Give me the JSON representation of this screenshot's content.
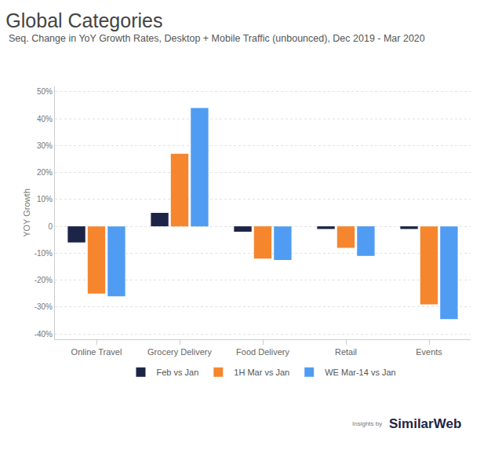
{
  "chart_data": {
    "type": "bar",
    "title": "Global Categories",
    "subtitle": "Seq. Change in YoY Growth Rates, Desktop + Mobile Traffic (unbounced), Dec 2019 - Mar 2020",
    "y_label": "YOY Growth",
    "categories": [
      "Online Travel",
      "Grocery Delivery",
      "Food Delivery",
      "Retail",
      "Events"
    ],
    "series": [
      {
        "name": "Feb vs Jan",
        "color": "#1c2547",
        "values": [
          -6,
          5,
          -2,
          -1,
          -1
        ]
      },
      {
        "name": "1H Mar vs Jan",
        "color": "#f5862e",
        "values": [
          -25,
          27,
          -12,
          -8,
          -29
        ]
      },
      {
        "name": "WE Mar-14 vs Jan",
        "color": "#4f9cf2",
        "values": [
          -26,
          44,
          -12.5,
          -11,
          -34.5
        ]
      }
    ],
    "ylim": [
      -42,
      52
    ],
    "yticks": [
      {
        "value": -40,
        "label": "-40%"
      },
      {
        "value": -30,
        "label": "-30%"
      },
      {
        "value": -20,
        "label": "-20%"
      },
      {
        "value": -10,
        "label": "-10%"
      },
      0,
      {
        "value": 10,
        "label": "10%"
      },
      {
        "value": 20,
        "label": "20%"
      },
      {
        "value": 30,
        "label": "30%"
      },
      {
        "value": 40,
        "label": "40%"
      },
      {
        "value": 50,
        "label": "50%"
      }
    ],
    "grid": true,
    "legend": "bottom",
    "annotations": [
      "Insights by",
      "SimilarWeb"
    ]
  }
}
